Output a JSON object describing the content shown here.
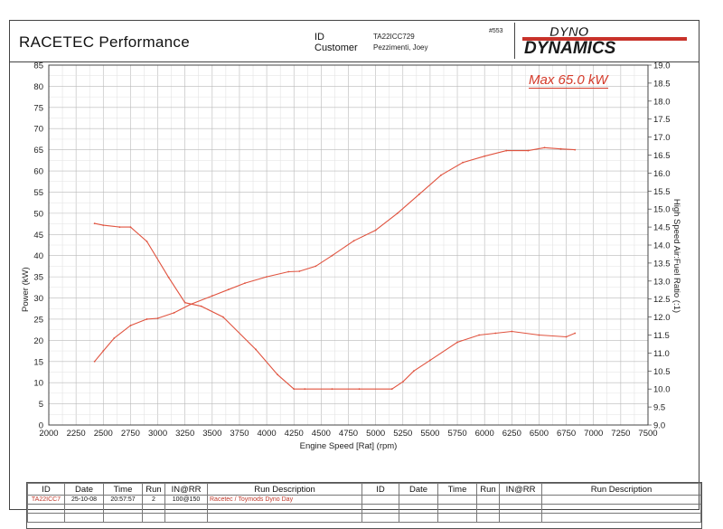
{
  "header": {
    "title": "RACETEC  Performance",
    "id_label": "ID",
    "customer_label": "Customer",
    "id_value": "TA22ICC729",
    "customer_value": "Pezzimenti, Joey",
    "ref": "#553",
    "logo_top": "DYNO",
    "logo_bottom": "DYNAMICS"
  },
  "annotation": "Max 65.0 kW",
  "chart_data": {
    "type": "line",
    "xlabel": "Engine Speed [Rat] (rpm)",
    "ylabel": "Power (kW)",
    "y2label": "High Speed Air:Fuel Ratio (:1)",
    "xlim": [
      2000,
      7500
    ],
    "ylim": [
      0,
      85
    ],
    "y2lim": [
      9.0,
      19.0
    ],
    "x_ticks": [
      2000,
      2250,
      2500,
      2750,
      3000,
      3250,
      3500,
      3750,
      4000,
      4250,
      4500,
      4750,
      5000,
      5250,
      5500,
      5750,
      6000,
      6250,
      6500,
      6750,
      7000,
      7250,
      7500
    ],
    "y_ticks": [
      0,
      5,
      10,
      15,
      20,
      25,
      30,
      35,
      40,
      45,
      50,
      55,
      60,
      65,
      70,
      75,
      80,
      85
    ],
    "y2_ticks": [
      "9.0",
      "9.5",
      "10.0",
      "10.5",
      "11.0",
      "11.5",
      "12.0",
      "12.5",
      "13.0",
      "13.5",
      "14.0",
      "14.5",
      "15.0",
      "15.5",
      "16.0",
      "16.5",
      "17.0",
      "17.5",
      "18.0",
      "18.5",
      "19.0"
    ],
    "grid": true,
    "series": [
      {
        "axis": "left",
        "color": "#e0533f",
        "x": [
          2420,
          2500,
          2600,
          2750,
          2900,
          3000,
          3150,
          3300,
          3500,
          3650,
          3800,
          4000,
          4200,
          4300,
          4450,
          4600,
          4800,
          5000,
          5200,
          5400,
          5600,
          5800,
          6000,
          6200,
          6400,
          6550,
          6700,
          6830
        ],
        "values": [
          15,
          17.5,
          20.5,
          23.5,
          25,
          25.2,
          26.5,
          28.5,
          30.5,
          32,
          33.5,
          35,
          36.2,
          36.3,
          37.5,
          40,
          43.5,
          46,
          50,
          54.5,
          59,
          62,
          63.5,
          64.8,
          64.8,
          65.5,
          65.2,
          65
        ]
      },
      {
        "axis": "right",
        "color": "#e0533f",
        "x": [
          2420,
          2500,
          2650,
          2750,
          2900,
          3100,
          3250,
          3400,
          3600,
          3900,
          4100,
          4250,
          4350,
          4600,
          4850,
          5150,
          5250,
          5350,
          5500,
          5750,
          5950,
          6100,
          6250,
          6500,
          6750,
          6830
        ],
        "values": [
          14.6,
          14.55,
          14.5,
          14.5,
          14.1,
          13.1,
          12.4,
          12.3,
          12.0,
          11.1,
          10.4,
          10.0,
          10.0,
          10.0,
          10.0,
          10.0,
          10.2,
          10.5,
          10.8,
          11.3,
          11.5,
          11.55,
          11.6,
          11.5,
          11.45,
          11.55
        ]
      }
    ]
  },
  "footer": {
    "headers_left": [
      "ID",
      "Date",
      "Time",
      "Run",
      "IN@RR",
      "Run Description"
    ],
    "headers_right": [
      "ID",
      "Date",
      "Time",
      "Run",
      "IN@RR",
      "Run Description"
    ],
    "rows": [
      [
        "TA22ICC7",
        "25-10-08",
        "20:57:57",
        "2",
        "100@150",
        "Racetec / Toymods Dyno Day"
      ]
    ]
  }
}
